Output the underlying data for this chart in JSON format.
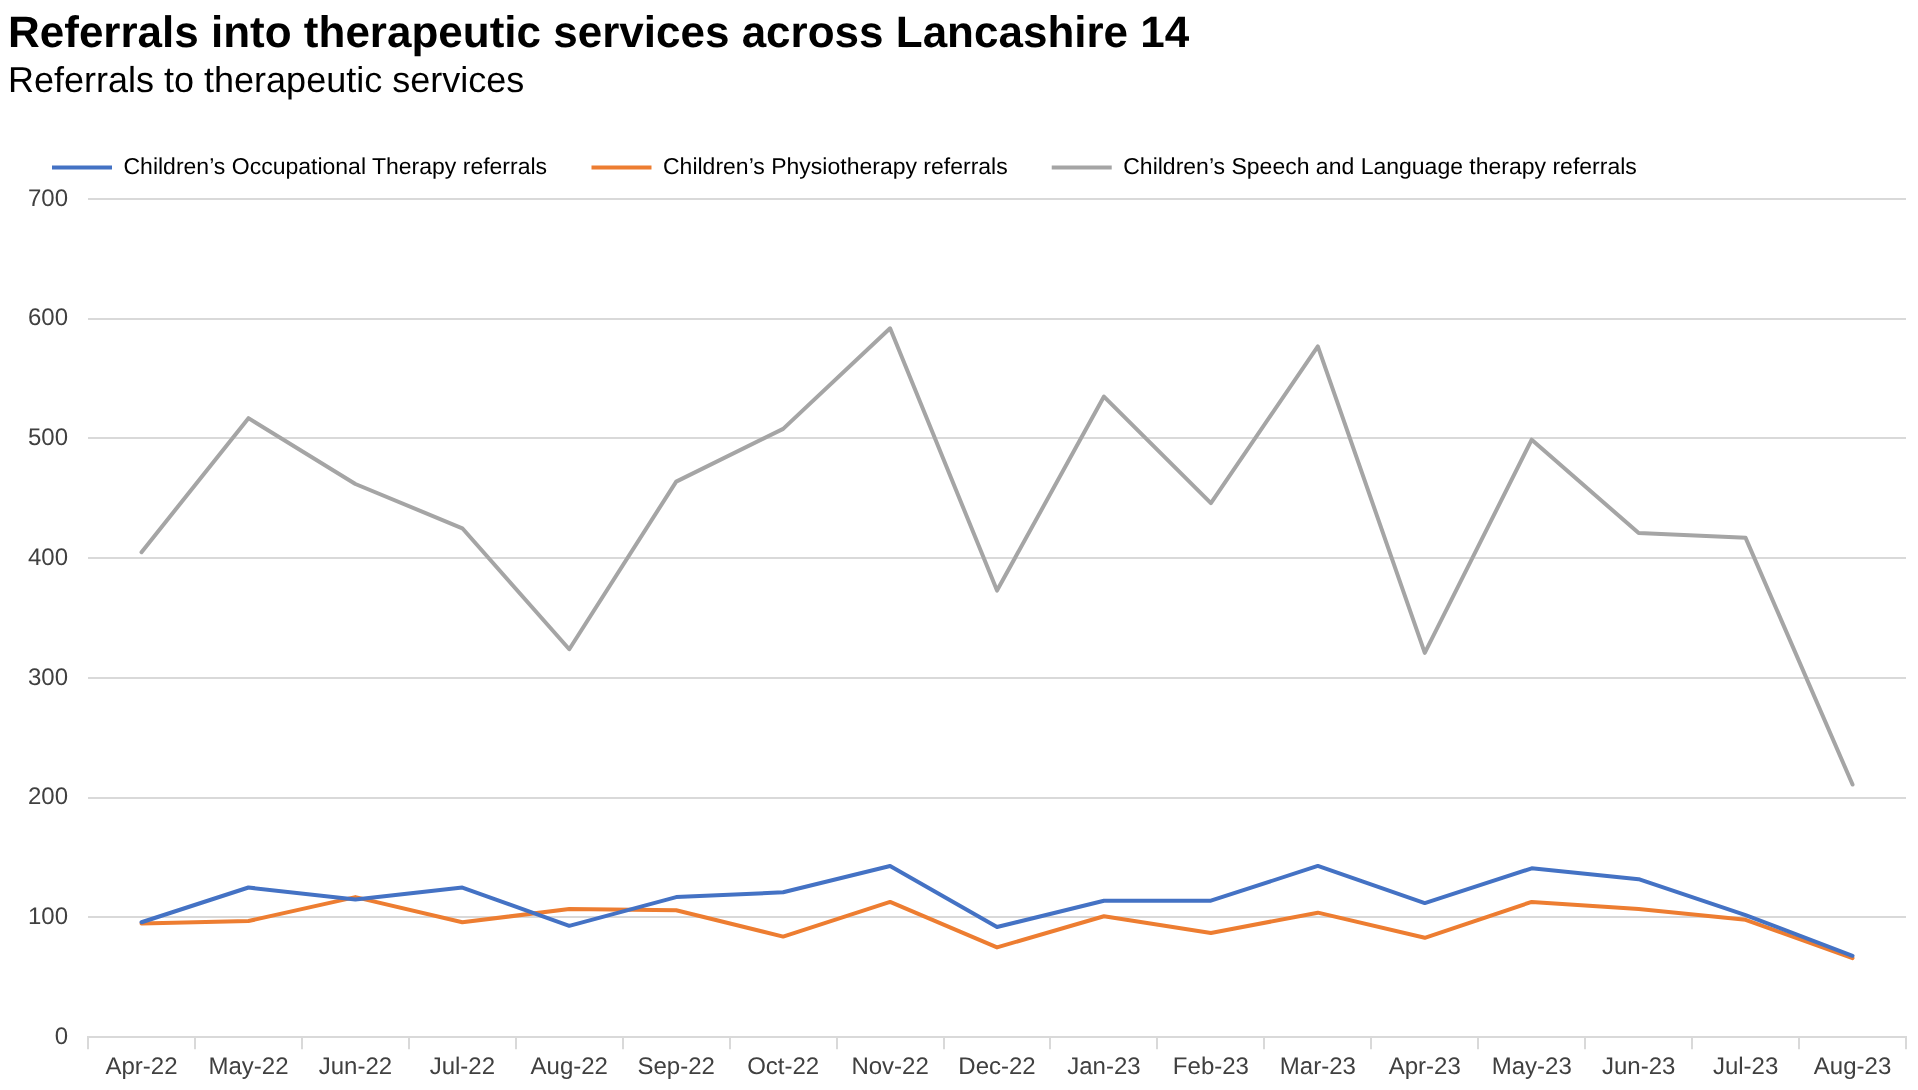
{
  "chart_data": {
    "type": "line",
    "title": "Referrals into therapeutic services across Lancashire 14",
    "subtitle": "Referrals to therapeutic services",
    "categories": [
      "Apr-22",
      "May-22",
      "Jun-22",
      "Jul-22",
      "Aug-22",
      "Sep-22",
      "Oct-22",
      "Nov-22",
      "Dec-22",
      "Jan-23",
      "Feb-23",
      "Mar-23",
      "Apr-23",
      "May-23",
      "Jun-23",
      "Jul-23",
      "Aug-23"
    ],
    "series": [
      {
        "name": "Children’s Occupational Therapy referrals",
        "color": "#4472c4",
        "values": [
          96,
          125,
          115,
          125,
          93,
          117,
          121,
          143,
          92,
          114,
          114,
          143,
          112,
          141,
          132,
          102,
          68
        ]
      },
      {
        "name": "Children’s Physiotherapy referrals",
        "color": "#ed7d31",
        "values": [
          95,
          97,
          117,
          96,
          107,
          106,
          84,
          113,
          75,
          101,
          87,
          104,
          83,
          113,
          107,
          98,
          66
        ]
      },
      {
        "name": "Children’s Speech and Language therapy referrals",
        "color": "#a5a5a5",
        "values": [
          405,
          517,
          462,
          425,
          324,
          464,
          508,
          592,
          373,
          535,
          446,
          577,
          321,
          499,
          421,
          417,
          211
        ]
      }
    ],
    "ylim": [
      0,
      700
    ],
    "yticks": [
      0,
      100,
      200,
      300,
      400,
      500,
      600,
      700
    ],
    "grid": "y",
    "legend": "top left",
    "marker": "none",
    "line_style": "solid"
  }
}
